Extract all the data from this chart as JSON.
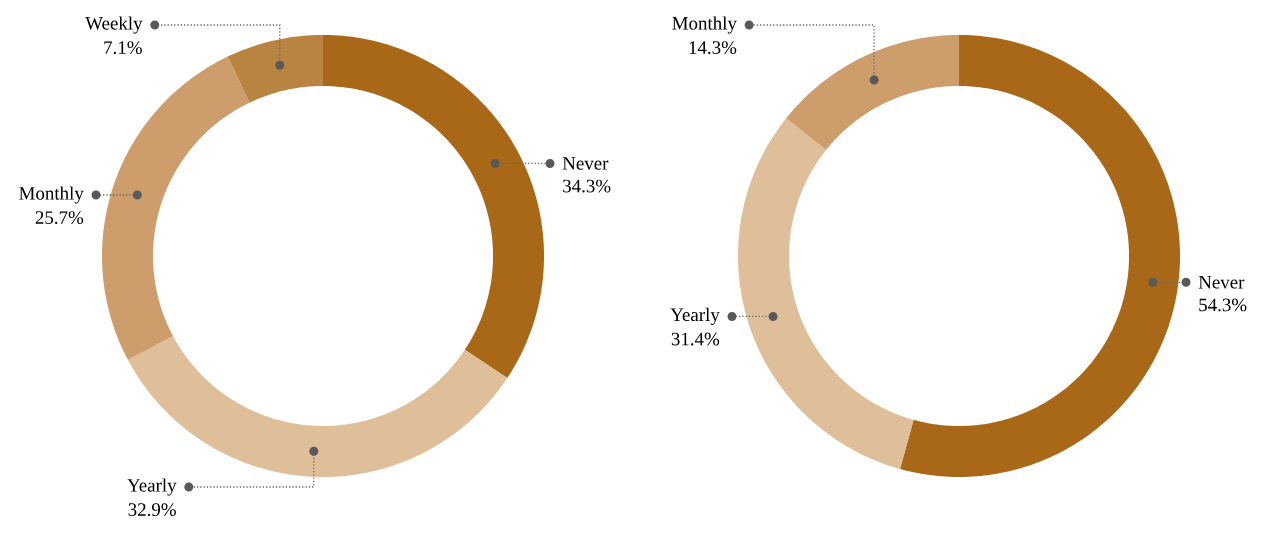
{
  "chart_data": [
    {
      "type": "donut",
      "categories": [
        "Never",
        "Yearly",
        "Monthly",
        "Weekly"
      ],
      "values": [
        34.3,
        32.9,
        25.7,
        7.1
      ],
      "colors": [
        "#a86818",
        "#dfbe9a",
        "#cd9e6c",
        "#b98341"
      ],
      "value_labels": [
        "34.3%",
        "32.9%",
        "25.7%",
        "7.1%"
      ]
    },
    {
      "type": "donut",
      "categories": [
        "Never",
        "Yearly",
        "Monthly"
      ],
      "values": [
        54.3,
        31.4,
        14.3
      ],
      "colors": [
        "#a86818",
        "#dfbe9a",
        "#cd9e6c"
      ],
      "value_labels": [
        "54.3%",
        "31.4%",
        "14.3%"
      ]
    }
  ]
}
